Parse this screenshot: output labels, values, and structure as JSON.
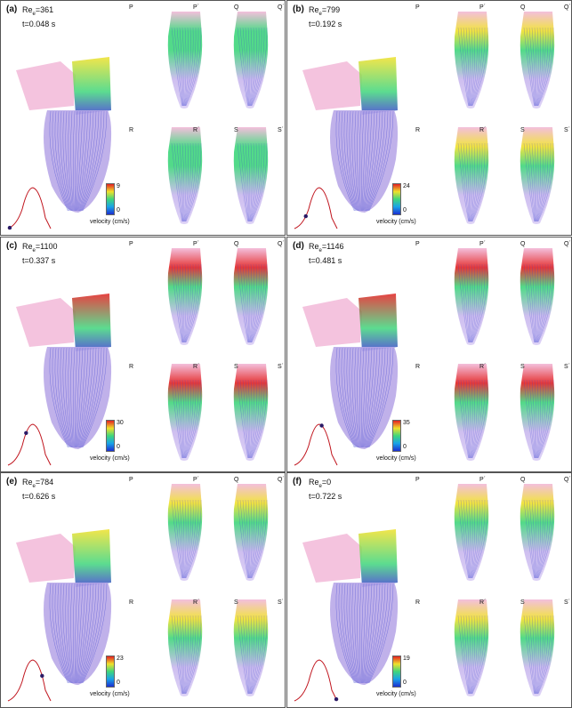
{
  "panels": [
    {
      "id": "a",
      "label": "(a)",
      "re_sub": "e",
      "re_value": "=361",
      "time": "t=0.048 s",
      "cb_max": "9",
      "cb_min": "0",
      "velocity_label": "velocity (cm/s)",
      "sections": [
        "P",
        "P´",
        "Q",
        "Q´",
        "R",
        "R´",
        "S",
        "S´"
      ]
    },
    {
      "id": "b",
      "label": "(b)",
      "re_sub": "e",
      "re_value": "=799",
      "time": "t=0.192 s",
      "cb_max": "24",
      "cb_min": "0",
      "velocity_label": "velocity (cm/s)",
      "sections": [
        "P",
        "P´",
        "Q",
        "Q´",
        "R",
        "R´",
        "S",
        "S´"
      ]
    },
    {
      "id": "c",
      "label": "(c)",
      "re_sub": "e",
      "re_value": "=1100",
      "time": "t=0.337 s",
      "cb_max": "30",
      "cb_min": "0",
      "velocity_label": "velocity (cm/s)",
      "sections": [
        "P",
        "P´",
        "Q",
        "Q´",
        "R",
        "R´",
        "S",
        "S´"
      ]
    },
    {
      "id": "d",
      "label": "(d)",
      "re_sub": "e",
      "re_value": "=1146",
      "time": "t=0.481 s",
      "cb_max": "35",
      "cb_min": "0",
      "velocity_label": "velocity (cm/s)",
      "sections": [
        "P",
        "P´",
        "Q",
        "Q´",
        "R",
        "R´",
        "S",
        "S´"
      ]
    },
    {
      "id": "e",
      "label": "(e)",
      "re_sub": "e",
      "re_value": "=784",
      "time": "t=0.626 s",
      "cb_max": "23",
      "cb_min": "0",
      "velocity_label": "velocity (cm/s)",
      "sections": [
        "P",
        "P´",
        "Q",
        "Q´",
        "R",
        "R´",
        "S",
        "S´"
      ]
    },
    {
      "id": "f",
      "label": "(f)",
      "re_sub": "e",
      "re_value": "=0",
      "time": "t=0.722 s",
      "cb_max": "19",
      "cb_min": "0",
      "velocity_label": "velocity (cm/s)",
      "sections": [
        "P",
        "P´",
        "Q",
        "Q´",
        "R",
        "R´",
        "S",
        "S´"
      ]
    }
  ],
  "colors": {
    "slow": "#3a3fd0",
    "fast": "#e32121",
    "vessel": "#f2b8d8",
    "curve": "#c0141d",
    "marker": "#2a1a66"
  }
}
